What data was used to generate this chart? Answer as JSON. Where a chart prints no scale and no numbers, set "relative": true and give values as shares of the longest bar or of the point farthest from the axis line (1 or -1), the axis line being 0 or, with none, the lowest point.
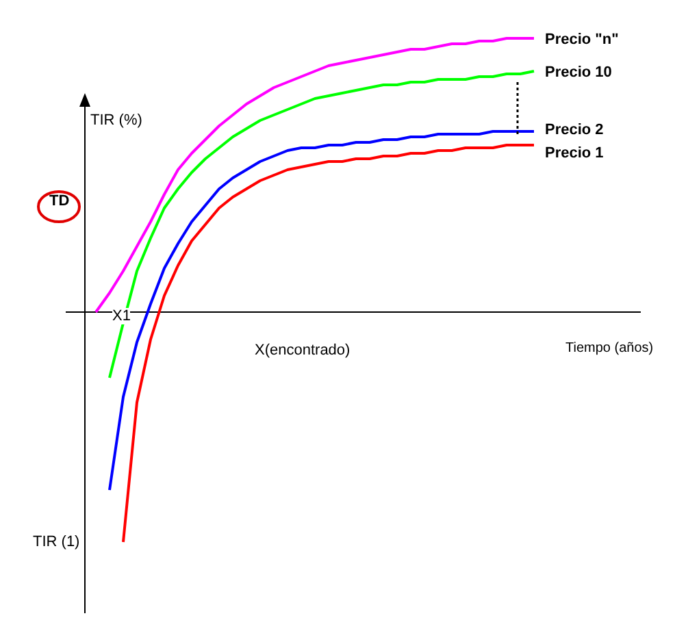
{
  "chart_data": {
    "type": "line",
    "relative": true,
    "xlabel": "Tiempo (años)",
    "ylabel": "TIR (%)",
    "tick_labels": false,
    "grid": false,
    "legend": false,
    "marker": "none",
    "line_style": "solid",
    "annotations": [
      "TD",
      "X1",
      "X(encontrado)",
      "TIR (1)"
    ],
    "categories": [
      null,
      null,
      null,
      null,
      null,
      null,
      null,
      null,
      null,
      null,
      null,
      null,
      null,
      null,
      null,
      null,
      null,
      null,
      null,
      null,
      null,
      null,
      null,
      null,
      null,
      null,
      null,
      null,
      null,
      null,
      null,
      null,
      null
    ],
    "series": [
      {
        "name": "Precio \"n\"",
        "color": "#ff00ff",
        "values": [
          0.0,
          0.07,
          0.15,
          0.24,
          0.33,
          0.43,
          0.52,
          0.58,
          0.63,
          0.68,
          0.72,
          0.76,
          0.79,
          0.82,
          0.84,
          0.86,
          0.88,
          0.9,
          0.91,
          0.92,
          0.93,
          0.94,
          0.95,
          0.96,
          0.96,
          0.97,
          0.98,
          0.98,
          0.99,
          0.99,
          1,
          1,
          1
        ]
      },
      {
        "name": "Precio 10",
        "color": "#00ff00",
        "values": [
          null,
          -0.24,
          -0.04,
          0.15,
          0.27,
          0.38,
          0.45,
          0.51,
          0.56,
          0.6,
          0.64,
          0.67,
          0.7,
          0.72,
          0.74,
          0.76,
          0.78,
          0.79,
          0.8,
          0.81,
          0.82,
          0.83,
          0.83,
          0.84,
          0.84,
          0.85,
          0.85,
          0.85,
          0.86,
          0.86,
          0.87,
          0.87,
          0.88
        ]
      },
      {
        "name": "Precio 2",
        "color": "#0000ff",
        "values": [
          null,
          -0.65,
          -0.31,
          -0.11,
          0.03,
          0.16,
          0.25,
          0.33,
          0.39,
          0.45,
          0.49,
          0.52,
          0.55,
          0.57,
          0.59,
          0.6,
          0.6,
          0.61,
          0.61,
          0.62,
          0.62,
          0.63,
          0.63,
          0.64,
          0.64,
          0.65,
          0.65,
          0.65,
          0.65,
          0.66,
          0.66,
          0.66,
          0.66
        ]
      },
      {
        "name": "Precio 1",
        "color": "#ff0000",
        "values": [
          null,
          null,
          -0.84,
          -0.33,
          -0.1,
          0.06,
          0.17,
          0.26,
          0.32,
          0.38,
          0.42,
          0.45,
          0.48,
          0.5,
          0.52,
          0.53,
          0.54,
          0.55,
          0.55,
          0.56,
          0.56,
          0.57,
          0.57,
          0.58,
          0.58,
          0.59,
          0.59,
          0.6,
          0.6,
          0.6,
          0.61,
          0.61,
          0.61
        ]
      }
    ]
  }
}
